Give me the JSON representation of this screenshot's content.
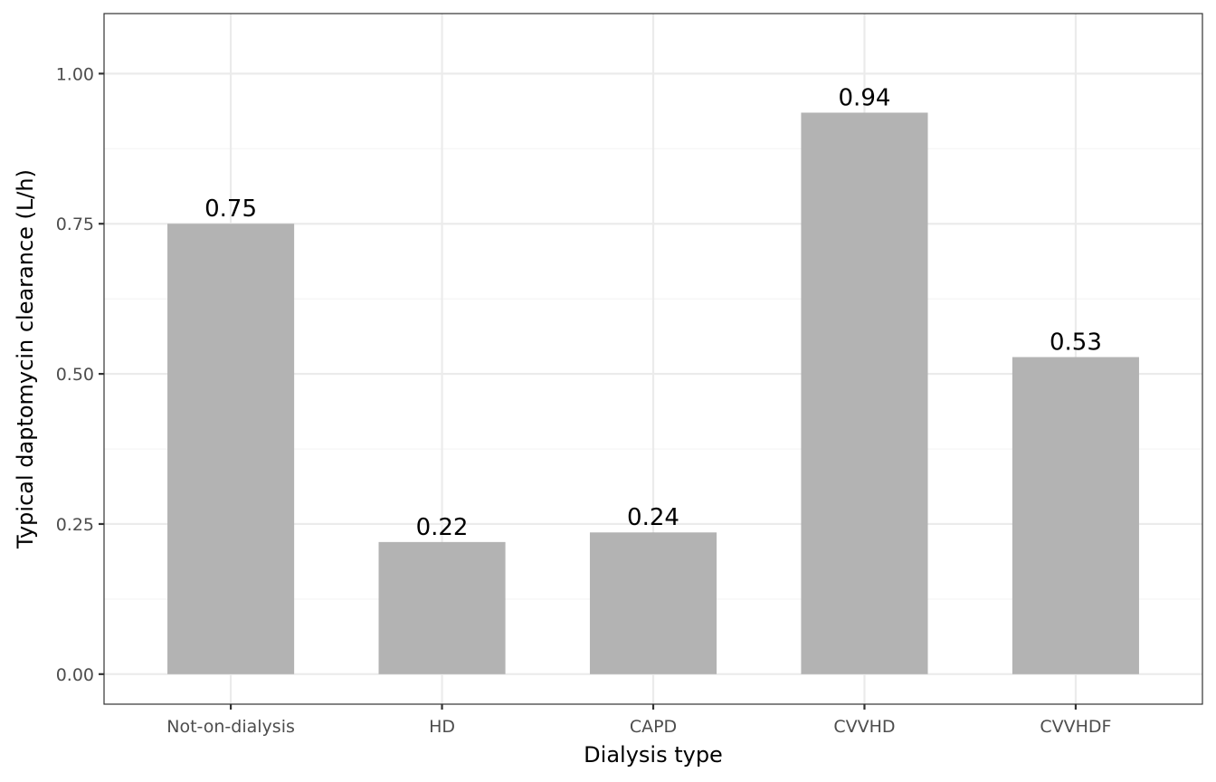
{
  "chart_data": {
    "type": "bar",
    "title": "",
    "xlabel": "Dialysis type",
    "ylabel": "Typical daptomycin clearance (L/h)",
    "categories": [
      "Not-on-dialysis",
      "HD",
      "CAPD",
      "CVVHD",
      "CVVHDF"
    ],
    "values": [
      0.75,
      0.22,
      0.236,
      0.935,
      0.528
    ],
    "data_labels": [
      "0.75",
      "0.22",
      "0.24",
      "0.94",
      "0.53"
    ],
    "ylim": [
      -0.05,
      1.1
    ],
    "yticks": [
      0.0,
      0.25,
      0.5,
      0.75,
      1.0
    ],
    "ytick_labels": [
      "0.00",
      "0.25",
      "0.50",
      "0.75",
      "1.00"
    ],
    "grid": true,
    "legend": "none",
    "bar_color": "#b3b3b3"
  }
}
